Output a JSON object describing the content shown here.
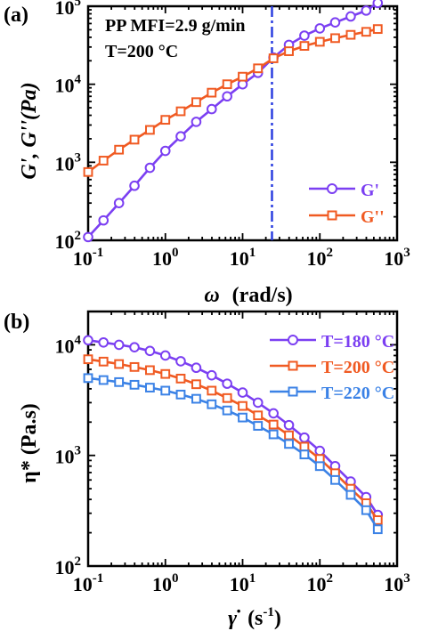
{
  "chart_data": [
    {
      "panel_label": "(a)",
      "type": "line",
      "xscale": "log",
      "yscale": "log",
      "xlim": [
        0.1,
        1000
      ],
      "ylim": [
        100,
        100000
      ],
      "x_ticks": [
        {
          "value": 0.1,
          "base": "10",
          "exp": "-1"
        },
        {
          "value": 1,
          "base": "10",
          "exp": "0"
        },
        {
          "value": 10,
          "base": "10",
          "exp": "1"
        },
        {
          "value": 100,
          "base": "10",
          "exp": "2"
        },
        {
          "value": 1000,
          "base": "10",
          "exp": "3"
        }
      ],
      "y_ticks": [
        {
          "value": 100,
          "base": "10",
          "exp": "2"
        },
        {
          "value": 1000,
          "base": "10",
          "exp": "3"
        },
        {
          "value": 10000,
          "base": "10",
          "exp": "4"
        },
        {
          "value": 100000,
          "base": "10",
          "exp": "5"
        }
      ],
      "xlabel": {
        "symbol": "ω",
        "rest": "(rad/s)"
      },
      "ylabel": "G', G''(Pa)",
      "annotations": [
        "PP MFI=2.9 g/min",
        "T=200 °C"
      ],
      "annotation_color": "#3d63d8",
      "crossover": {
        "x": 24,
        "line": "dash-dot",
        "color": "#2b3fe0"
      },
      "legend": "bottom-right",
      "series": [
        {
          "name": "G'",
          "color": "#7b3ff2",
          "marker": "circle",
          "x": [
            0.1,
            0.158,
            0.251,
            0.398,
            0.631,
            1.0,
            1.58,
            2.51,
            3.98,
            6.31,
            10.0,
            15.8,
            25.1,
            39.8,
            63.1,
            100,
            158,
            251,
            398,
            562
          ],
          "y": [
            110,
            180,
            300,
            500,
            850,
            1400,
            2150,
            3300,
            4800,
            7000,
            10000,
            14000,
            22000,
            32000,
            42000,
            52000,
            62000,
            74000,
            88000,
            110000
          ]
        },
        {
          "name": "G''",
          "color": "#f05a22",
          "marker": "square",
          "x": [
            0.1,
            0.158,
            0.251,
            0.398,
            0.631,
            1.0,
            1.58,
            2.51,
            3.98,
            6.31,
            10.0,
            15.8,
            25.1,
            39.8,
            63.1,
            100,
            158,
            251,
            398,
            562
          ],
          "y": [
            750,
            1050,
            1450,
            1950,
            2600,
            3500,
            4500,
            5900,
            7800,
            10000,
            12500,
            16000,
            21500,
            26500,
            31000,
            35000,
            39000,
            43000,
            47000,
            51000
          ]
        }
      ]
    },
    {
      "panel_label": "(b)",
      "type": "line",
      "xscale": "log",
      "yscale": "log",
      "xlim": [
        0.1,
        1000
      ],
      "ylim": [
        100,
        20000
      ],
      "x_ticks": [
        {
          "value": 0.1,
          "base": "10",
          "exp": "-1"
        },
        {
          "value": 1,
          "base": "10",
          "exp": "0"
        },
        {
          "value": 10,
          "base": "10",
          "exp": "1"
        },
        {
          "value": 100,
          "base": "10",
          "exp": "2"
        },
        {
          "value": 1000,
          "base": "10",
          "exp": "3"
        }
      ],
      "y_ticks": [
        {
          "value": 100,
          "base": "10",
          "exp": "2"
        },
        {
          "value": 1000,
          "base": "10",
          "exp": "3"
        },
        {
          "value": 10000,
          "base": "10",
          "exp": "4"
        }
      ],
      "xlabel": {
        "symbol": "γ̇",
        "rest": "(s",
        "sup": "-1",
        "close": ")"
      },
      "ylabel": "η* (Pa.s)",
      "legend": "top-right",
      "series": [
        {
          "name": "T=180 °C",
          "color": "#7b3ff2",
          "marker": "circle",
          "x": [
            0.1,
            0.158,
            0.251,
            0.398,
            0.631,
            1.0,
            1.58,
            2.51,
            3.98,
            6.31,
            10.0,
            15.8,
            25.1,
            39.8,
            63.1,
            100,
            158,
            251,
            398,
            562
          ],
          "y": [
            11000,
            10500,
            10000,
            9500,
            8800,
            8000,
            7100,
            6200,
            5300,
            4450,
            3700,
            3000,
            2400,
            1880,
            1450,
            1100,
            800,
            580,
            420,
            290
          ]
        },
        {
          "name": "T=200 °C",
          "color": "#f05a22",
          "marker": "square",
          "x": [
            0.1,
            0.158,
            0.251,
            0.398,
            0.631,
            1.0,
            1.58,
            2.51,
            3.98,
            6.31,
            10.0,
            15.8,
            25.1,
            39.8,
            63.1,
            100,
            158,
            251,
            398,
            562
          ],
          "y": [
            7400,
            7050,
            6700,
            6300,
            5900,
            5450,
            4950,
            4400,
            3850,
            3300,
            2800,
            2300,
            1900,
            1520,
            1200,
            930,
            690,
            500,
            370,
            260
          ]
        },
        {
          "name": "T=220 °C",
          "color": "#3b82e6",
          "marker": "square",
          "x": [
            0.1,
            0.158,
            0.251,
            0.398,
            0.631,
            1.0,
            1.58,
            2.51,
            3.98,
            6.31,
            10.0,
            15.8,
            25.1,
            39.8,
            63.1,
            100,
            158,
            251,
            398,
            562
          ],
          "y": [
            5000,
            4800,
            4600,
            4350,
            4100,
            3850,
            3550,
            3250,
            2900,
            2550,
            2200,
            1850,
            1550,
            1270,
            1020,
            800,
            600,
            440,
            320,
            215
          ]
        }
      ]
    }
  ]
}
